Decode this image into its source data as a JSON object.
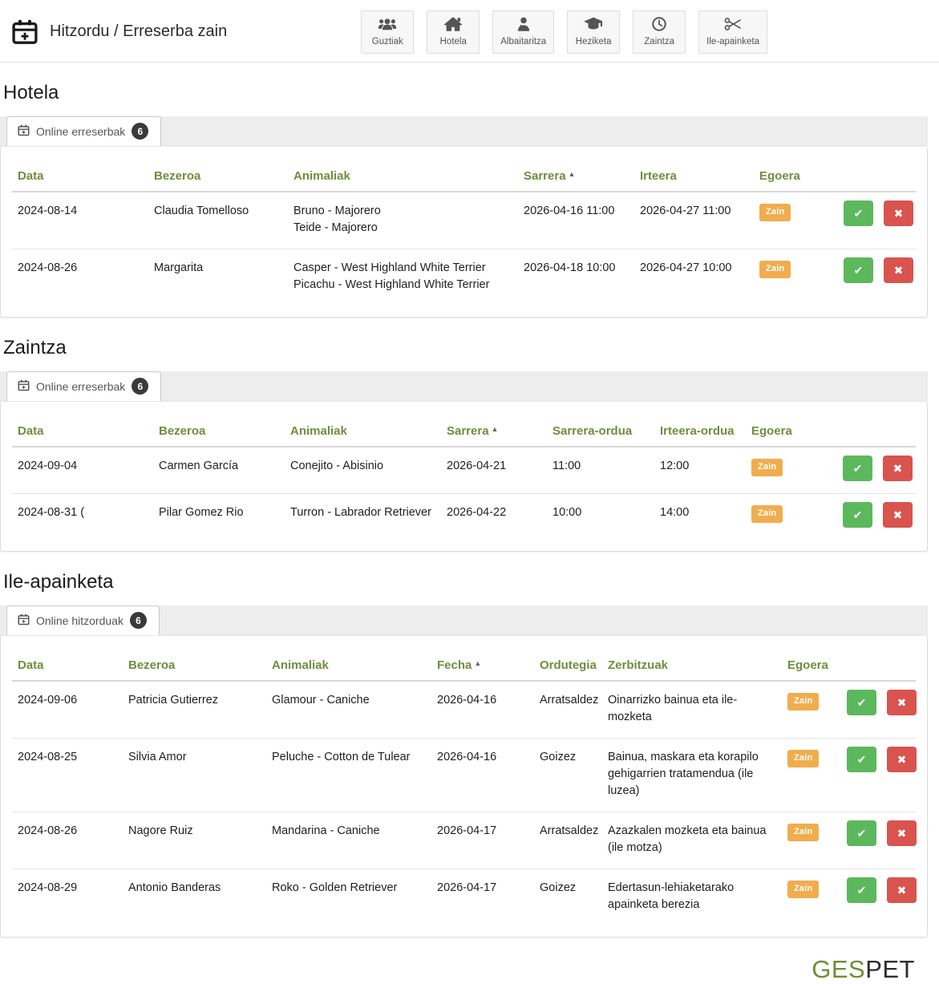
{
  "header": {
    "title": "Hitzordu / Erreserba zain",
    "nav": [
      {
        "label": "Guztiak",
        "icon": "users-icon"
      },
      {
        "label": "Hotela",
        "icon": "home-icon"
      },
      {
        "label": "Albaitaritza",
        "icon": "vet-icon"
      },
      {
        "label": "Heziketa",
        "icon": "graduation-cap-icon"
      },
      {
        "label": "Zaintza",
        "icon": "clock-icon"
      },
      {
        "label": "Ile-apainketa",
        "icon": "scissors-icon"
      }
    ]
  },
  "sort_indicator": "▲",
  "actions": {
    "confirm_glyph": "✔",
    "cancel_glyph": "✖"
  },
  "colors": {
    "accent_green": "#6e8f3b",
    "badge_orange": "#f0ad4e",
    "confirm_green": "#5cb85c",
    "cancel_red": "#d9534f",
    "tab_badge_dark": "#3a3a3a"
  },
  "sections": [
    {
      "title": "Hotela",
      "tab": {
        "label": "Online erreserbak",
        "count": "6"
      },
      "columns": [
        {
          "key": "data",
          "label": "Data"
        },
        {
          "key": "bezeroa",
          "label": "Bezeroa"
        },
        {
          "key": "animaliak",
          "label": "Animaliak"
        },
        {
          "key": "sarrera",
          "label": "Sarrera",
          "sorted": true
        },
        {
          "key": "irteera",
          "label": "Irteera"
        },
        {
          "key": "egoera",
          "label": "Egoera"
        }
      ],
      "rows": [
        {
          "data": "2024-08-14",
          "bezeroa": "Claudia Tomelloso",
          "animaliak": [
            "Bruno - Majorero",
            "Teide - Majorero"
          ],
          "sarrera": "2026-04-16 11:00",
          "irteera": "2026-04-27 11:00",
          "egoera": "Zain"
        },
        {
          "data": "2024-08-26",
          "bezeroa": "Margarita",
          "animaliak": [
            "Casper - West Highland White Terrier",
            "Picachu - West Highland White Terrier"
          ],
          "sarrera": "2026-04-18 10:00",
          "irteera": "2026-04-27 10:00",
          "egoera": "Zain"
        }
      ]
    },
    {
      "title": "Zaintza",
      "tab": {
        "label": "Online erreserbak",
        "count": "6"
      },
      "columns": [
        {
          "key": "data",
          "label": "Data"
        },
        {
          "key": "bezeroa",
          "label": "Bezeroa"
        },
        {
          "key": "animaliak",
          "label": "Animaliak"
        },
        {
          "key": "sarrera",
          "label": "Sarrera",
          "sorted": true
        },
        {
          "key": "sarrera_ordua",
          "label": "Sarrera-ordua"
        },
        {
          "key": "irteera_ordua",
          "label": "Irteera-ordua"
        },
        {
          "key": "egoera",
          "label": "Egoera"
        }
      ],
      "rows": [
        {
          "data": "2024-09-04",
          "bezeroa": "Carmen García",
          "animaliak": [
            "Conejito - Abisinio"
          ],
          "sarrera": "2026-04-21",
          "sarrera_ordua": "11:00",
          "irteera_ordua": "12:00",
          "egoera": "Zain"
        },
        {
          "data": "2024-08-31 (",
          "bezeroa": "Pilar Gomez Rio",
          "animaliak": [
            "Turron - Labrador Retriever"
          ],
          "sarrera": "2026-04-22",
          "sarrera_ordua": "10:00",
          "irteera_ordua": "14:00",
          "egoera": "Zain"
        }
      ]
    },
    {
      "title": "Ile-apainketa",
      "tab": {
        "label": "Online hitzorduak",
        "count": "6"
      },
      "columns": [
        {
          "key": "data",
          "label": "Data"
        },
        {
          "key": "bezeroa",
          "label": "Bezeroa"
        },
        {
          "key": "animaliak",
          "label": "Animaliak"
        },
        {
          "key": "fecha",
          "label": "Fecha",
          "sorted": true
        },
        {
          "key": "ordutegia",
          "label": "Ordutegia"
        },
        {
          "key": "zerbitzuak",
          "label": "Zerbitzuak"
        },
        {
          "key": "egoera",
          "label": "Egoera"
        }
      ],
      "rows": [
        {
          "data": "2024-09-06",
          "bezeroa": "Patricia Gutierrez",
          "animaliak": [
            "Glamour - Caniche"
          ],
          "fecha": "2026-04-16",
          "ordutegia": "Arratsaldez",
          "zerbitzuak": "Oinarrizko bainua eta ile-mozketa",
          "egoera": "Zain"
        },
        {
          "data": "2024-08-25",
          "bezeroa": "Silvia Amor",
          "animaliak": [
            "Peluche - Cotton de Tulear"
          ],
          "fecha": "2026-04-16",
          "ordutegia": "Goizez",
          "zerbitzuak": "Bainua, maskara eta korapilo gehigarrien tratamendua (ile luzea)",
          "egoera": "Zain"
        },
        {
          "data": "2024-08-26",
          "bezeroa": "Nagore Ruiz",
          "animaliak": [
            "Mandarina - Caniche"
          ],
          "fecha": "2026-04-17",
          "ordutegia": "Arratsaldez",
          "zerbitzuak": "Azazkalen mozketa eta bainua (ile motza)",
          "egoera": "Zain"
        },
        {
          "data": "2024-08-29",
          "bezeroa": "Antonio Banderas",
          "animaliak": [
            "Roko - Golden Retriever"
          ],
          "fecha": "2026-04-17",
          "ordutegia": "Goizez",
          "zerbitzuak": "Edertasun-lehiaketarako apainketa berezia",
          "egoera": "Zain"
        }
      ]
    }
  ],
  "logo": {
    "ges": "GES",
    "pet": "PET"
  }
}
